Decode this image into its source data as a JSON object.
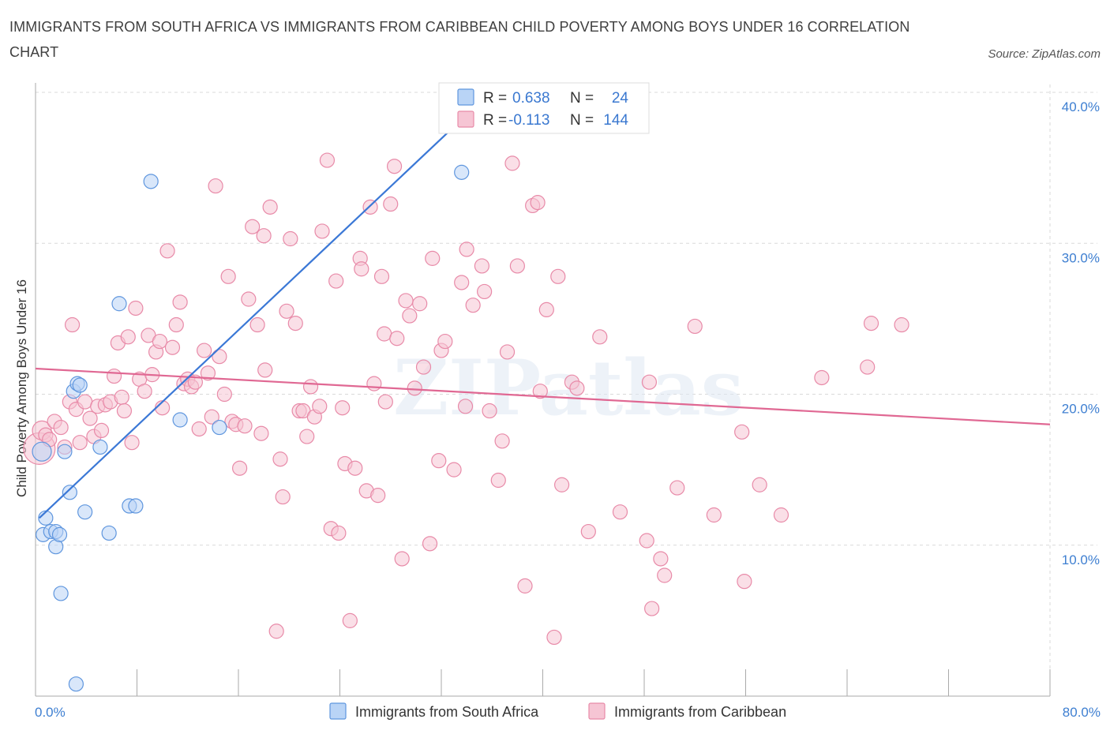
{
  "title": "IMMIGRANTS FROM SOUTH AFRICA VS IMMIGRANTS FROM CARIBBEAN CHILD POVERTY AMONG BOYS UNDER 16 CORRELATION CHART",
  "source": "Source: ZipAtlas.com",
  "watermark": "ZIPatlas",
  "colors": {
    "blue_fill": "#b9d4f6",
    "blue_stroke": "#5f96de",
    "blue_line": "#3b78d6",
    "pink_fill": "#f6c5d4",
    "pink_stroke": "#e88aa8",
    "pink_line": "#e06893",
    "tick_text": "#3e7fd1",
    "grid": "#d9d9d9"
  },
  "legend": {
    "rows": [
      {
        "r_label": "R =",
        "r_value": "0.638",
        "n_label": "N =",
        "n_value": "24",
        "series": "blue"
      },
      {
        "r_label": "R =",
        "r_value": "-0.113",
        "n_label": "N =",
        "n_value": "144",
        "series": "pink"
      }
    ]
  },
  "chart_data": {
    "type": "scatter",
    "title": "IMMIGRANTS FROM SOUTH AFRICA VS IMMIGRANTS FROM CARIBBEAN CHILD POVERTY AMONG BOYS UNDER 16 CORRELATION CHART",
    "xlabel": "",
    "ylabel": "Child Poverty Among Boys Under 16",
    "xlim": [
      0,
      80
    ],
    "ylim": [
      0,
      40
    ],
    "x_tick_labels": [
      "0.0%",
      "80.0%"
    ],
    "y_ticks": [
      10,
      20,
      30,
      40
    ],
    "y_tick_labels": [
      "10.0%",
      "20.0%",
      "30.0%",
      "40.0%"
    ],
    "grid": true,
    "legend_position": "bottom-center",
    "series": [
      {
        "name": "Immigrants from South Africa",
        "color": "blue",
        "R": 0.638,
        "N": 24,
        "trend": {
          "x0": 0.3,
          "y0": 11.8,
          "x1": 36.5,
          "y1": 40.5
        },
        "points": [
          [
            0.5,
            16.2,
            12
          ],
          [
            0.6,
            10.7,
            9
          ],
          [
            0.8,
            11.8,
            9
          ],
          [
            1.2,
            10.9,
            9
          ],
          [
            1.6,
            10.9,
            9
          ],
          [
            1.6,
            9.9,
            9
          ],
          [
            1.9,
            10.7,
            9
          ],
          [
            2.0,
            6.8,
            9
          ],
          [
            2.3,
            16.2,
            9
          ],
          [
            2.7,
            13.5,
            9
          ],
          [
            3.0,
            20.2,
            9
          ],
          [
            3.3,
            20.7,
            9
          ],
          [
            3.5,
            20.6,
            9
          ],
          [
            3.9,
            12.2,
            9
          ],
          [
            5.1,
            16.5,
            9
          ],
          [
            5.8,
            10.8,
            9
          ],
          [
            6.6,
            26.0,
            9
          ],
          [
            7.4,
            12.6,
            9
          ],
          [
            7.9,
            12.6,
            9
          ],
          [
            9.1,
            34.1,
            9
          ],
          [
            11.4,
            18.3,
            9
          ],
          [
            14.5,
            17.8,
            9
          ],
          [
            33.6,
            34.7,
            9
          ],
          [
            3.2,
            0.8,
            9
          ]
        ]
      },
      {
        "name": "Immigrants from Caribbean",
        "color": "pink",
        "R": -0.113,
        "N": 144,
        "trend": {
          "x0": 0.0,
          "y0": 21.7,
          "x1": 80.0,
          "y1": 18.0
        },
        "points": [
          [
            0.3,
            16.4,
            20
          ],
          [
            0.5,
            17.6,
            12
          ],
          [
            0.8,
            17.3,
            9
          ],
          [
            1.1,
            17.0,
            9
          ],
          [
            1.5,
            18.2,
            9
          ],
          [
            2.0,
            17.8,
            9
          ],
          [
            2.3,
            16.5,
            9
          ],
          [
            2.7,
            19.5,
            9
          ],
          [
            2.9,
            24.6,
            9
          ],
          [
            3.2,
            19.0,
            9
          ],
          [
            3.5,
            16.8,
            9
          ],
          [
            3.9,
            19.5,
            9
          ],
          [
            4.3,
            18.4,
            9
          ],
          [
            4.6,
            17.2,
            9
          ],
          [
            4.9,
            19.2,
            9
          ],
          [
            5.2,
            17.6,
            9
          ],
          [
            5.5,
            19.3,
            9
          ],
          [
            5.9,
            19.5,
            9
          ],
          [
            6.2,
            21.2,
            9
          ],
          [
            6.5,
            23.4,
            9
          ],
          [
            6.8,
            19.8,
            9
          ],
          [
            7.0,
            18.9,
            9
          ],
          [
            7.3,
            23.8,
            9
          ],
          [
            7.6,
            16.8,
            9
          ],
          [
            7.9,
            25.7,
            9
          ],
          [
            8.2,
            21.0,
            9
          ],
          [
            8.6,
            20.2,
            9
          ],
          [
            8.9,
            23.9,
            9
          ],
          [
            9.2,
            21.3,
            9
          ],
          [
            9.5,
            22.8,
            9
          ],
          [
            9.8,
            23.5,
            9
          ],
          [
            10.0,
            19.1,
            9
          ],
          [
            10.4,
            29.5,
            9
          ],
          [
            10.8,
            23.1,
            9
          ],
          [
            11.1,
            24.6,
            9
          ],
          [
            11.4,
            26.1,
            9
          ],
          [
            11.7,
            20.7,
            9
          ],
          [
            12.0,
            21.0,
            9
          ],
          [
            12.3,
            20.5,
            9
          ],
          [
            12.6,
            20.8,
            9
          ],
          [
            12.9,
            17.7,
            9
          ],
          [
            13.3,
            22.9,
            9
          ],
          [
            13.6,
            21.4,
            9
          ],
          [
            13.9,
            18.5,
            9
          ],
          [
            14.2,
            33.8,
            9
          ],
          [
            14.5,
            22.5,
            9
          ],
          [
            14.9,
            20.0,
            9
          ],
          [
            15.2,
            27.8,
            9
          ],
          [
            15.5,
            18.2,
            9
          ],
          [
            15.8,
            18.0,
            9
          ],
          [
            16.1,
            15.1,
            9
          ],
          [
            16.5,
            17.9,
            9
          ],
          [
            16.8,
            26.3,
            9
          ],
          [
            17.1,
            31.1,
            9
          ],
          [
            17.5,
            24.6,
            9
          ],
          [
            17.8,
            17.4,
            9
          ],
          [
            18.1,
            21.6,
            9
          ],
          [
            18.0,
            30.5,
            9
          ],
          [
            18.5,
            32.4,
            9
          ],
          [
            19.0,
            4.3,
            9
          ],
          [
            19.3,
            15.7,
            9
          ],
          [
            19.5,
            13.2,
            9
          ],
          [
            19.8,
            25.5,
            9
          ],
          [
            20.1,
            30.3,
            9
          ],
          [
            20.5,
            24.7,
            9
          ],
          [
            20.8,
            18.9,
            9
          ],
          [
            21.1,
            18.9,
            9
          ],
          [
            21.4,
            17.2,
            9
          ],
          [
            21.7,
            20.5,
            9
          ],
          [
            22.0,
            18.5,
            9
          ],
          [
            22.4,
            19.2,
            9
          ],
          [
            22.6,
            30.8,
            9
          ],
          [
            23.0,
            35.5,
            9
          ],
          [
            23.3,
            11.1,
            9
          ],
          [
            23.7,
            27.5,
            9
          ],
          [
            23.9,
            10.8,
            9
          ],
          [
            24.2,
            19.1,
            9
          ],
          [
            24.4,
            15.4,
            9
          ],
          [
            24.8,
            5.0,
            9
          ],
          [
            25.2,
            15.1,
            9
          ],
          [
            25.6,
            29.0,
            9
          ],
          [
            25.7,
            28.3,
            9
          ],
          [
            26.1,
            13.6,
            9
          ],
          [
            26.4,
            32.4,
            9
          ],
          [
            26.7,
            20.7,
            9
          ],
          [
            27.0,
            13.3,
            9
          ],
          [
            27.3,
            27.8,
            9
          ],
          [
            27.6,
            19.5,
            9
          ],
          [
            27.5,
            24.0,
            9
          ],
          [
            28.0,
            32.6,
            9
          ],
          [
            28.3,
            35.1,
            9
          ],
          [
            28.5,
            23.7,
            9
          ],
          [
            28.9,
            9.1,
            9
          ],
          [
            29.2,
            26.2,
            9
          ],
          [
            29.5,
            25.2,
            9
          ],
          [
            29.9,
            20.4,
            9
          ],
          [
            30.3,
            26.0,
            9
          ],
          [
            30.6,
            21.8,
            9
          ],
          [
            31.1,
            10.1,
            9
          ],
          [
            31.3,
            29.0,
            9
          ],
          [
            31.8,
            15.6,
            9
          ],
          [
            32.0,
            22.9,
            9
          ],
          [
            32.3,
            23.5,
            9
          ],
          [
            33.0,
            15.0,
            9
          ],
          [
            33.6,
            27.4,
            9
          ],
          [
            33.9,
            19.2,
            9
          ],
          [
            34.0,
            29.6,
            9
          ],
          [
            34.5,
            25.9,
            9
          ],
          [
            35.2,
            28.5,
            9
          ],
          [
            35.4,
            26.8,
            9
          ],
          [
            35.8,
            18.9,
            9
          ],
          [
            36.5,
            14.3,
            9
          ],
          [
            36.8,
            16.9,
            9
          ],
          [
            37.2,
            22.8,
            9
          ],
          [
            37.6,
            35.3,
            9
          ],
          [
            38.0,
            28.5,
            9
          ],
          [
            38.6,
            7.3,
            9
          ],
          [
            39.2,
            32.5,
            9
          ],
          [
            39.6,
            32.7,
            9
          ],
          [
            39.8,
            20.2,
            9
          ],
          [
            40.3,
            25.6,
            9
          ],
          [
            40.9,
            3.9,
            9
          ],
          [
            41.2,
            27.8,
            9
          ],
          [
            41.5,
            14.0,
            9
          ],
          [
            42.3,
            20.8,
            9
          ],
          [
            42.7,
            20.4,
            9
          ],
          [
            43.6,
            10.9,
            9
          ],
          [
            44.5,
            23.8,
            9
          ],
          [
            46.1,
            12.2,
            9
          ],
          [
            48.2,
            10.3,
            9
          ],
          [
            48.4,
            20.8,
            9
          ],
          [
            48.6,
            5.8,
            9
          ],
          [
            49.3,
            9.1,
            9
          ],
          [
            49.6,
            8.0,
            9
          ],
          [
            50.6,
            13.8,
            9
          ],
          [
            52.0,
            24.5,
            9
          ],
          [
            53.5,
            12.0,
            9
          ],
          [
            55.7,
            17.5,
            9
          ],
          [
            55.9,
            7.6,
            9
          ],
          [
            57.1,
            14.0,
            9
          ],
          [
            58.8,
            12.0,
            9
          ],
          [
            62.0,
            21.1,
            9
          ],
          [
            65.6,
            21.8,
            9
          ],
          [
            65.9,
            24.7,
            9
          ],
          [
            68.3,
            24.6,
            9
          ]
        ]
      }
    ]
  },
  "bottom_legend": {
    "items": [
      {
        "label": "Immigrants from South Africa",
        "color": "blue"
      },
      {
        "label": "Immigrants from Caribbean",
        "color": "pink"
      }
    ]
  }
}
